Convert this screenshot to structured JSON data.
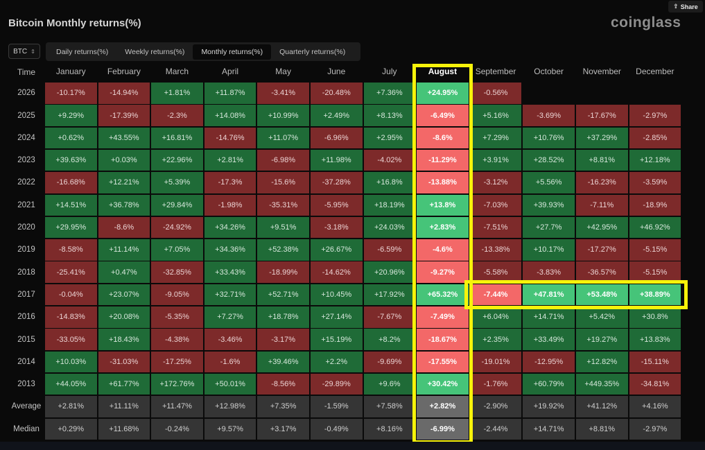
{
  "share_label": "Share",
  "title": "Bitcoin Monthly returns(%)",
  "logo": "coinglass",
  "asset_select": "BTC",
  "tabs": [
    "Daily returns(%)",
    "Weekly returns(%)",
    "Monthly returns(%)",
    "Quarterly returns(%)"
  ],
  "active_tab": 2,
  "highlighted_month": "August",
  "highlighted_year_row": "2017",
  "colors": {
    "positive": "#1f6b37",
    "negative": "#7d2a2a",
    "highlight": "#f7f30a",
    "bright_positive": "#46c479",
    "bright_negative": "#f36868"
  },
  "chart_data": {
    "type": "table",
    "title": "Bitcoin Monthly returns(%)",
    "corner_label": "Time",
    "columns": [
      "January",
      "February",
      "March",
      "April",
      "May",
      "June",
      "July",
      "August",
      "September",
      "October",
      "November",
      "December"
    ],
    "rows": [
      {
        "label": "2026",
        "values": [
          "-10.17%",
          "-14.94%",
          "+1.81%",
          "+11.87%",
          "-3.41%",
          "-20.48%",
          "+7.36%",
          "+24.95%",
          "-0.56%",
          "",
          "",
          ""
        ]
      },
      {
        "label": "2025",
        "values": [
          "+9.29%",
          "-17.39%",
          "-2.3%",
          "+14.08%",
          "+10.99%",
          "+2.49%",
          "+8.13%",
          "-6.49%",
          "+5.16%",
          "-3.69%",
          "-17.67%",
          "-2.97%"
        ]
      },
      {
        "label": "2024",
        "values": [
          "+0.62%",
          "+43.55%",
          "+16.81%",
          "-14.76%",
          "+11.07%",
          "-6.96%",
          "+2.95%",
          "-8.6%",
          "+7.29%",
          "+10.76%",
          "+37.29%",
          "-2.85%"
        ]
      },
      {
        "label": "2023",
        "values": [
          "+39.63%",
          "+0.03%",
          "+22.96%",
          "+2.81%",
          "-6.98%",
          "+11.98%",
          "-4.02%",
          "-11.29%",
          "+3.91%",
          "+28.52%",
          "+8.81%",
          "+12.18%"
        ]
      },
      {
        "label": "2022",
        "values": [
          "-16.68%",
          "+12.21%",
          "+5.39%",
          "-17.3%",
          "-15.6%",
          "-37.28%",
          "+16.8%",
          "-13.88%",
          "-3.12%",
          "+5.56%",
          "-16.23%",
          "-3.59%"
        ]
      },
      {
        "label": "2021",
        "values": [
          "+14.51%",
          "+36.78%",
          "+29.84%",
          "-1.98%",
          "-35.31%",
          "-5.95%",
          "+18.19%",
          "+13.8%",
          "-7.03%",
          "+39.93%",
          "-7.11%",
          "-18.9%"
        ]
      },
      {
        "label": "2020",
        "values": [
          "+29.95%",
          "-8.6%",
          "-24.92%",
          "+34.26%",
          "+9.51%",
          "-3.18%",
          "+24.03%",
          "+2.83%",
          "-7.51%",
          "+27.7%",
          "+42.95%",
          "+46.92%"
        ]
      },
      {
        "label": "2019",
        "values": [
          "-8.58%",
          "+11.14%",
          "+7.05%",
          "+34.36%",
          "+52.38%",
          "+26.67%",
          "-6.59%",
          "-4.6%",
          "-13.38%",
          "+10.17%",
          "-17.27%",
          "-5.15%"
        ]
      },
      {
        "label": "2018",
        "values": [
          "-25.41%",
          "+0.47%",
          "-32.85%",
          "+33.43%",
          "-18.99%",
          "-14.62%",
          "+20.96%",
          "-9.27%",
          "-5.58%",
          "-3.83%",
          "-36.57%",
          "-5.15%"
        ]
      },
      {
        "label": "2017",
        "values": [
          "-0.04%",
          "+23.07%",
          "-9.05%",
          "+32.71%",
          "+52.71%",
          "+10.45%",
          "+17.92%",
          "+65.32%",
          "-7.44%",
          "+47.81%",
          "+53.48%",
          "+38.89%"
        ]
      },
      {
        "label": "2016",
        "values": [
          "-14.83%",
          "+20.08%",
          "-5.35%",
          "+7.27%",
          "+18.78%",
          "+27.14%",
          "-7.67%",
          "-7.49%",
          "+6.04%",
          "+14.71%",
          "+5.42%",
          "+30.8%"
        ]
      },
      {
        "label": "2015",
        "values": [
          "-33.05%",
          "+18.43%",
          "-4.38%",
          "-3.46%",
          "-3.17%",
          "+15.19%",
          "+8.2%",
          "-18.67%",
          "+2.35%",
          "+33.49%",
          "+19.27%",
          "+13.83%"
        ]
      },
      {
        "label": "2014",
        "values": [
          "+10.03%",
          "-31.03%",
          "-17.25%",
          "-1.6%",
          "+39.46%",
          "+2.2%",
          "-9.69%",
          "-17.55%",
          "-19.01%",
          "-12.95%",
          "+12.82%",
          "-15.11%"
        ]
      },
      {
        "label": "2013",
        "values": [
          "+44.05%",
          "+61.77%",
          "+172.76%",
          "+50.01%",
          "-8.56%",
          "-29.89%",
          "+9.6%",
          "+30.42%",
          "-1.76%",
          "+60.79%",
          "+449.35%",
          "-34.81%"
        ]
      },
      {
        "label": "Average",
        "values": [
          "+2.81%",
          "+11.11%",
          "+11.47%",
          "+12.98%",
          "+7.35%",
          "-1.59%",
          "+7.58%",
          "+2.82%",
          "-2.90%",
          "+19.92%",
          "+41.12%",
          "+4.16%"
        ]
      },
      {
        "label": "Median",
        "values": [
          "+0.29%",
          "+11.68%",
          "-0.24%",
          "+9.57%",
          "+3.17%",
          "-0.49%",
          "+8.16%",
          "-6.99%",
          "-2.44%",
          "+14.71%",
          "+8.81%",
          "-2.97%"
        ]
      }
    ]
  }
}
